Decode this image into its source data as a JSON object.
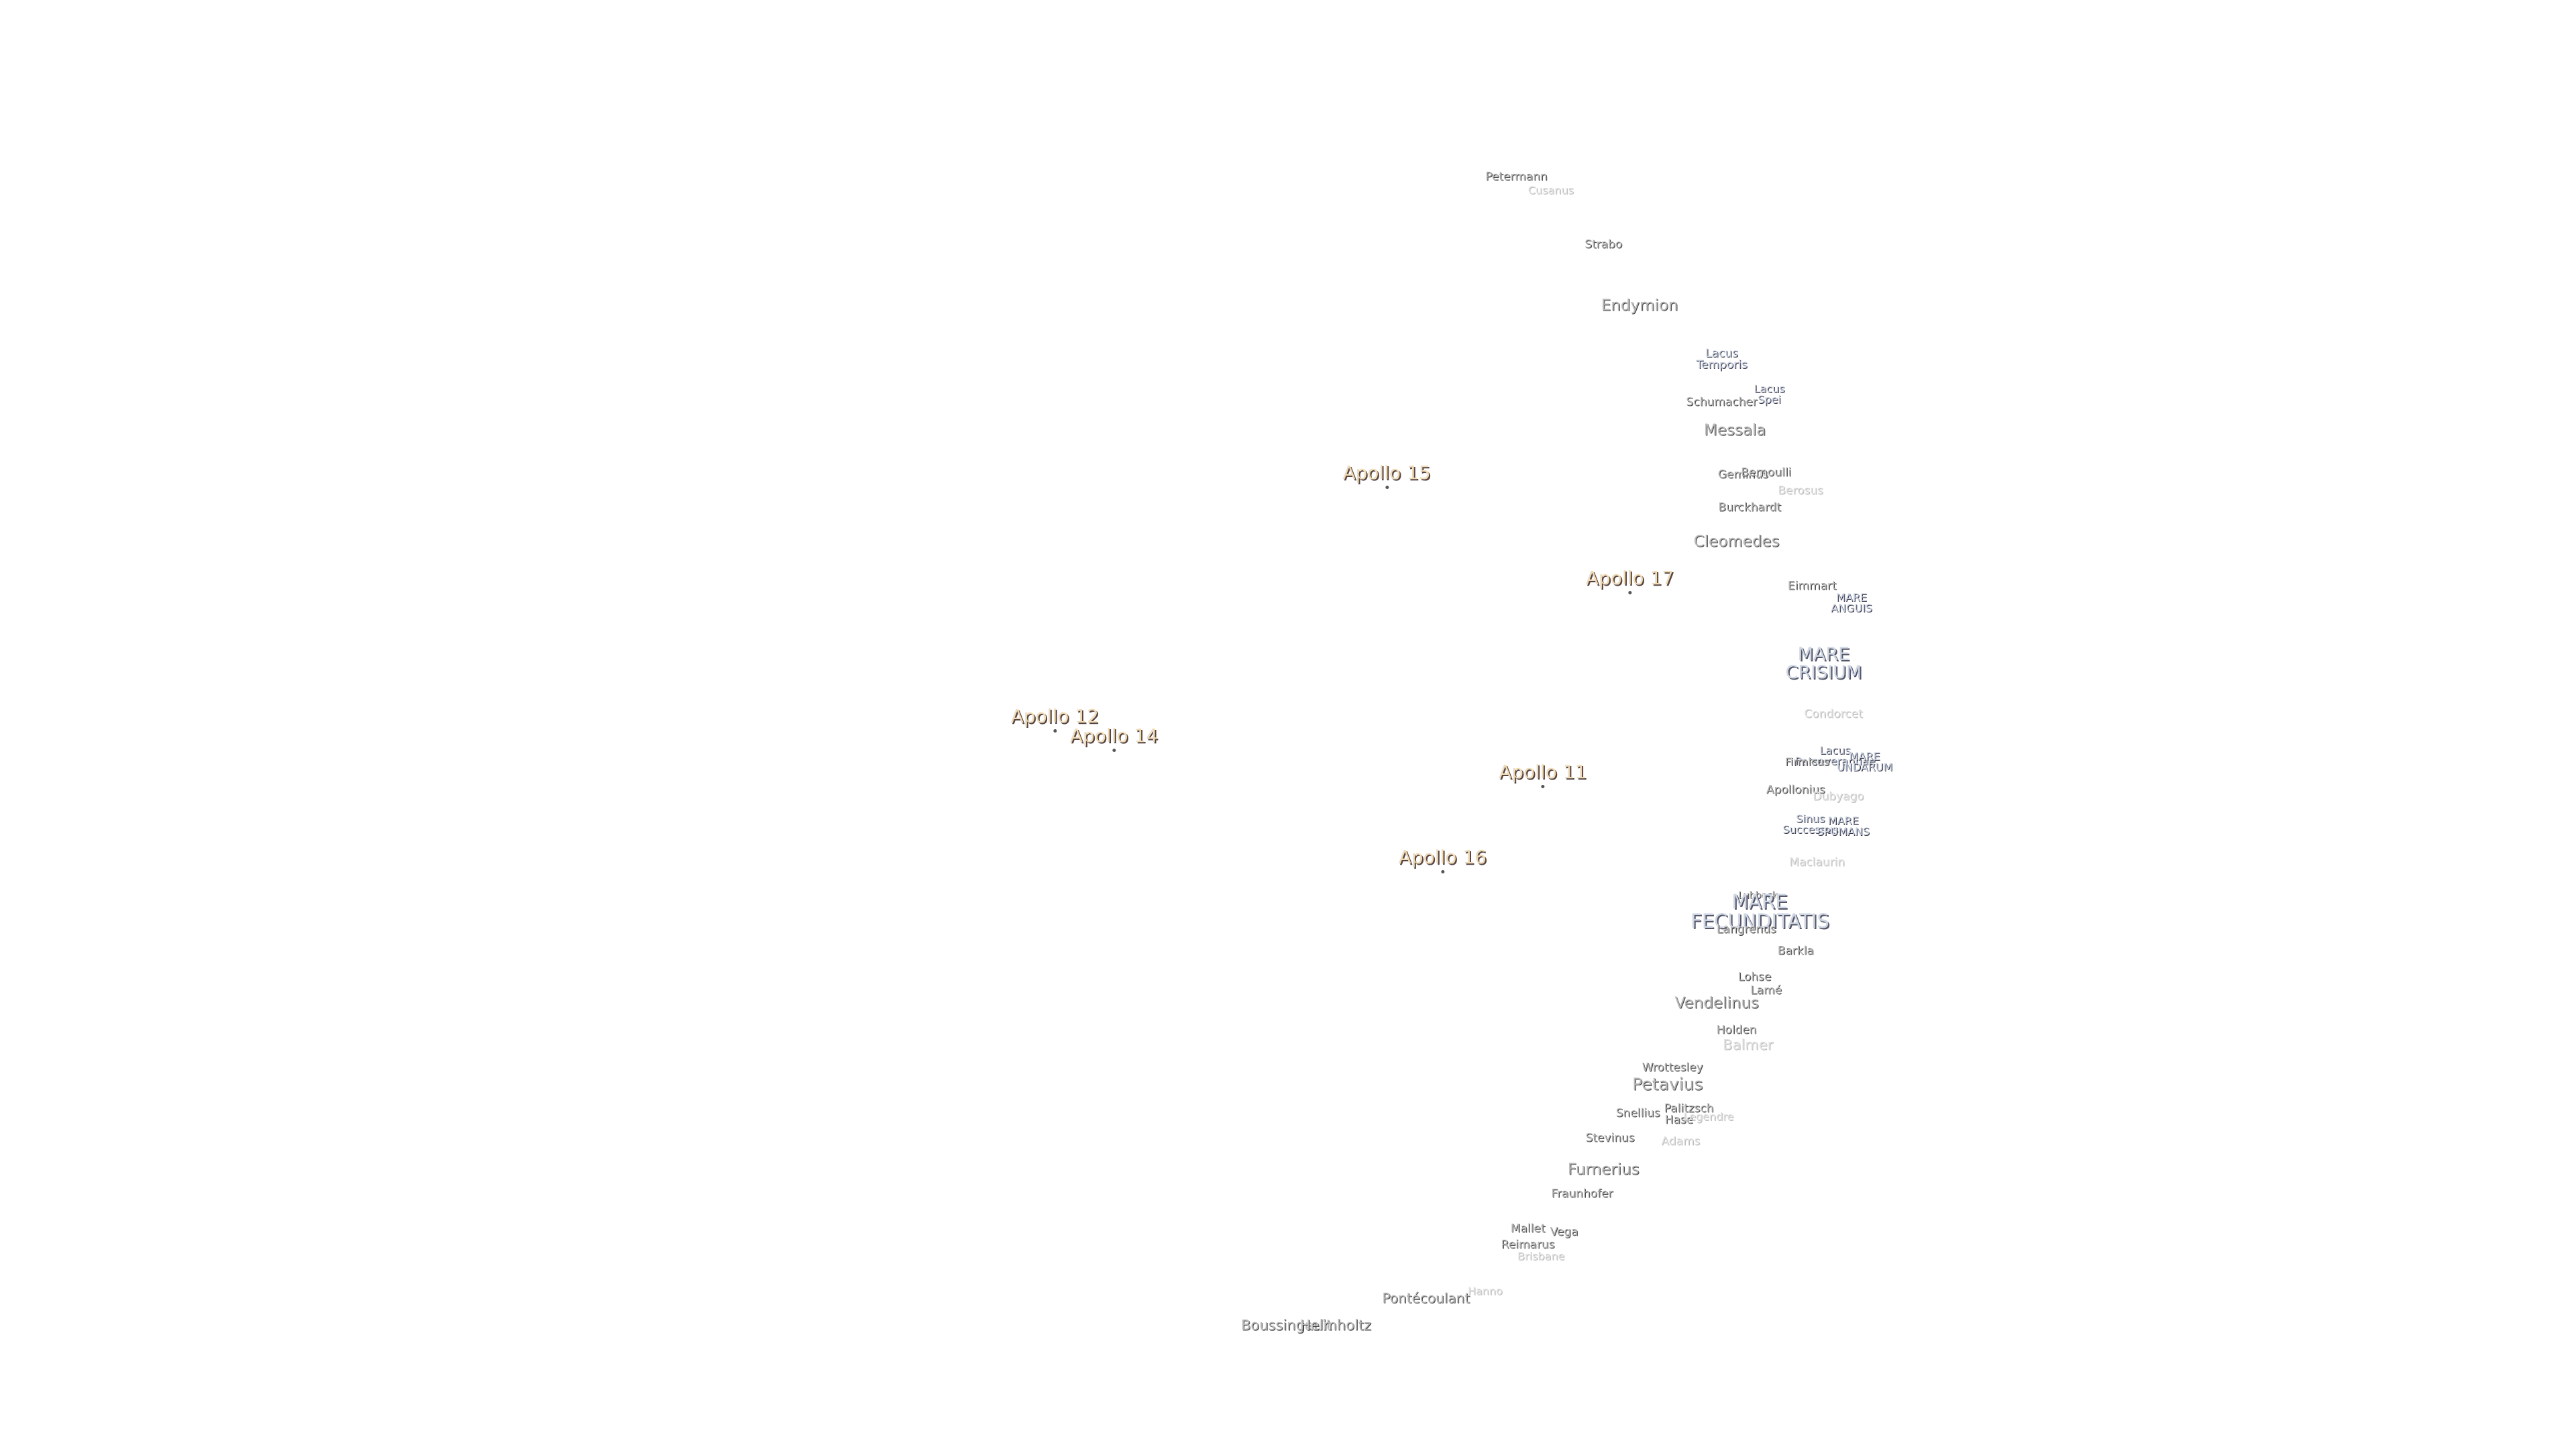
{
  "labels": [
    "Petermann",
    "Cusanus",
    "Strabo",
    "Endymion",
    "Lacus Temporis",
    "Lacus Spei",
    "Schumacher",
    "Messala",
    "Apollo 15",
    "Geminus",
    "Bernoulli",
    "Berosus",
    "Burckhardt",
    "Cleomedes",
    "Apollo 17",
    "Eimmart",
    "MARE ANGUIS",
    "MARE CRISIUM",
    "Condorcet",
    "Apollo 12",
    "Apollo 14",
    "Lacus Perseverantiae",
    "MARE UNDARUM",
    "Apollo 11",
    "Firmicus",
    "Apollonius",
    "Dubyago",
    "Sinus Successus",
    "MARE SPUMANS",
    "Maclaurin",
    "Apollo 16",
    "Lubbock",
    "MARE FECUNDITATIS",
    "Langrenus",
    "Barkla",
    "Lohse",
    "Lamé",
    "Vendelinus",
    "Holden",
    "Balmer",
    "Wrottesley",
    "Petavius",
    "Snellius",
    "Palitzsch",
    "Hase",
    "Legendre",
    "Stevinus",
    "Adams",
    "Furnerius",
    "Fraunhofer",
    "Mallet",
    "Vega",
    "Reimarus",
    "Brisbane",
    "Hanno",
    "Pontécoulant",
    "Boussingault",
    "Helmholtz"
  ]
}
